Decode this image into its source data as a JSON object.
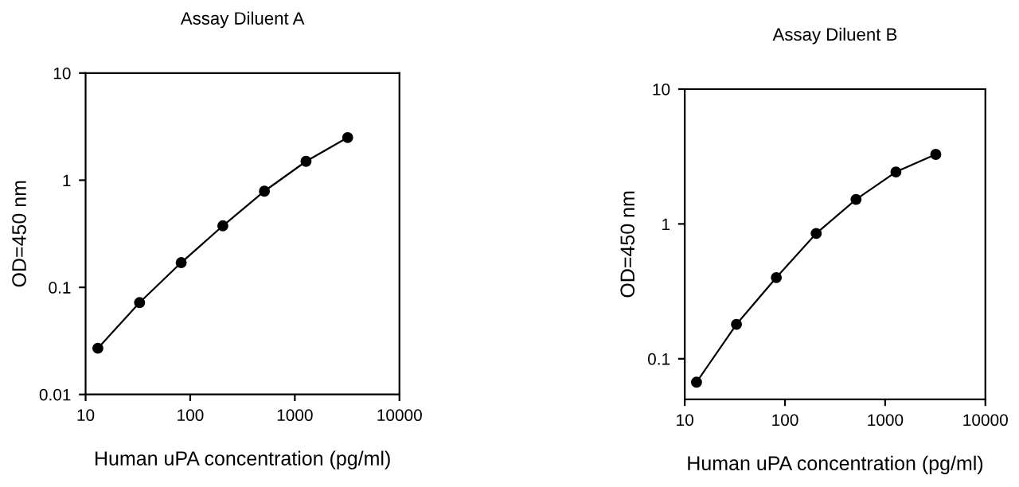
{
  "chart_data": [
    {
      "type": "line",
      "title": "Assay Diluent A",
      "xlabel": "Human uPA concentration (pg/ml)",
      "ylabel": "OD=450 nm",
      "log": "xy",
      "marker": "circle",
      "line_style": "solid",
      "grid": false,
      "legend": false,
      "x": [
        13.1,
        32.8,
        82,
        205,
        512,
        1280,
        3200
      ],
      "series": [
        {
          "color": "#000000",
          "values": [
            0.027,
            0.072,
            0.17,
            0.375,
            0.79,
            1.5,
            2.5
          ]
        }
      ],
      "xlim": [
        10,
        10000
      ],
      "xticks": [
        10,
        100,
        1000,
        10000
      ],
      "ylim": [
        0.01,
        10
      ],
      "yticks": [
        0.01,
        0.1,
        1,
        10
      ]
    },
    {
      "type": "line",
      "title": "Assay Diluent B",
      "xlabel": "Human uPA concentration (pg/ml)",
      "ylabel": "OD=450 nm",
      "log": "xy",
      "marker": "circle",
      "line_style": "solid",
      "grid": false,
      "legend": false,
      "x": [
        13.1,
        32.8,
        82,
        205,
        512,
        1280,
        3200
      ],
      "series": [
        {
          "color": "#000000",
          "values": [
            0.067,
            0.18,
            0.4,
            0.85,
            1.52,
            2.43,
            3.28
          ]
        }
      ],
      "xlim": [
        10,
        10000
      ],
      "xticks": [
        10,
        100,
        1000,
        10000
      ],
      "ylim": [
        0.05,
        10
      ],
      "yticks": [
        0.1,
        1,
        10
      ]
    }
  ]
}
